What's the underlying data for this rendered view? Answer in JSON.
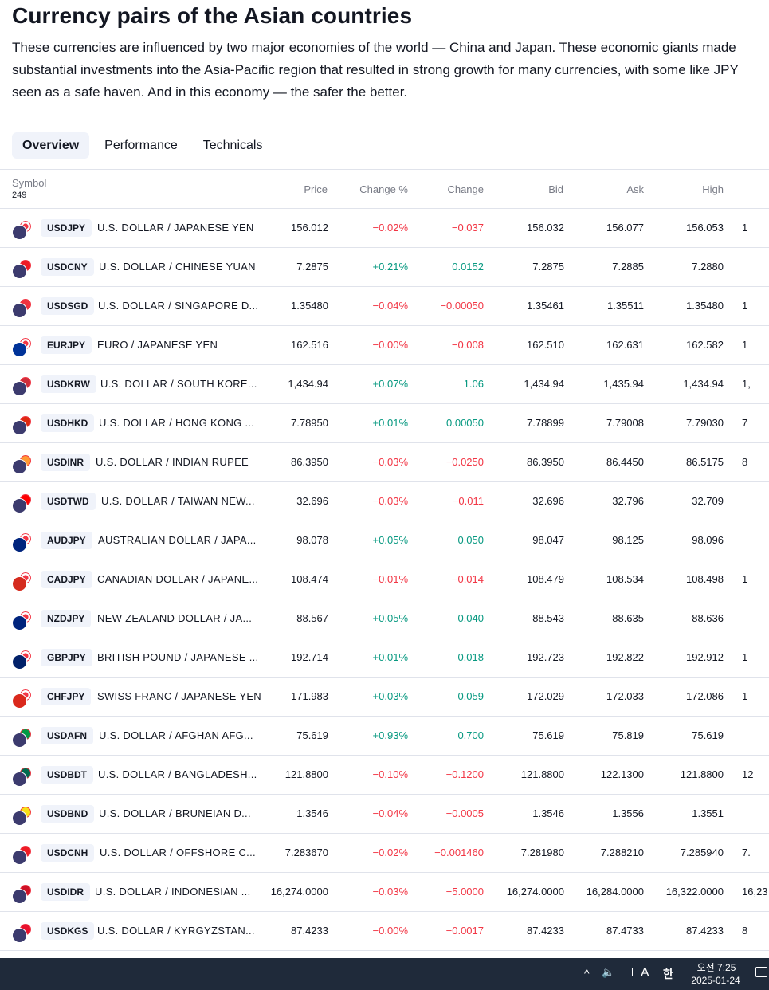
{
  "page": {
    "title": "Currency pairs of the Asian countries",
    "description": "These currencies are influenced by two major economies of the world — China and Japan. These economic giants made substantial investments into the Asia-Pacific region that resulted in strong growth for many currencies, with some like JPY seen as a safe haven. And in this economy — the safer the better."
  },
  "tabs": [
    "Overview",
    "Performance",
    "Technicals"
  ],
  "table": {
    "symbol_header": "Symbol",
    "symbol_count": "249",
    "columns": [
      "Price",
      "Change %",
      "Change",
      "Bid",
      "Ask",
      "High"
    ],
    "rows": [
      {
        "ticker": "USDJPY",
        "name": "U.S. DOLLAR / JAPANESE YEN",
        "price": "156.012",
        "chgp": "−0.02%",
        "chg": "−0.037",
        "bid": "156.032",
        "ask": "156.077",
        "high": "156.053",
        "extra": "1",
        "dir": "neg",
        "flags": [
          "#3c3b6e",
          "#ffffff"
        ]
      },
      {
        "ticker": "USDCNY",
        "name": "U.S. DOLLAR / CHINESE YUAN",
        "price": "7.2875",
        "chgp": "+0.21%",
        "chg": "0.0152",
        "bid": "7.2875",
        "ask": "7.2885",
        "high": "7.2880",
        "extra": "",
        "dir": "pos",
        "flags": [
          "#3c3b6e",
          "#ee1c25"
        ]
      },
      {
        "ticker": "USDSGD",
        "name": "U.S. DOLLAR / SINGAPORE D...",
        "price": "1.35480",
        "chgp": "−0.04%",
        "chg": "−0.00050",
        "bid": "1.35461",
        "ask": "1.35511",
        "high": "1.35480",
        "extra": "1",
        "dir": "neg",
        "flags": [
          "#3c3b6e",
          "#ef3340"
        ]
      },
      {
        "ticker": "EURJPY",
        "name": "EURO / JAPANESE YEN",
        "price": "162.516",
        "chgp": "−0.00%",
        "chg": "−0.008",
        "bid": "162.510",
        "ask": "162.631",
        "high": "162.582",
        "extra": "1",
        "dir": "neg",
        "flags": [
          "#003399",
          "#ffffff"
        ]
      },
      {
        "ticker": "USDKRW",
        "name": "U.S. DOLLAR / SOUTH KORE...",
        "price": "1,434.94",
        "chgp": "+0.07%",
        "chg": "1.06",
        "bid": "1,434.94",
        "ask": "1,435.94",
        "high": "1,434.94",
        "extra": "1,",
        "dir": "pos",
        "flags": [
          "#3c3b6e",
          "#cd2e3a"
        ]
      },
      {
        "ticker": "USDHKD",
        "name": "U.S. DOLLAR / HONG KONG ...",
        "price": "7.78950",
        "chgp": "+0.01%",
        "chg": "0.00050",
        "bid": "7.78899",
        "ask": "7.79008",
        "high": "7.79030",
        "extra": "7",
        "dir": "pos",
        "flags": [
          "#3c3b6e",
          "#de2910"
        ]
      },
      {
        "ticker": "USDINR",
        "name": "U.S. DOLLAR / INDIAN RUPEE",
        "price": "86.3950",
        "chgp": "−0.03%",
        "chg": "−0.0250",
        "bid": "86.3950",
        "ask": "86.4450",
        "high": "86.5175",
        "extra": "8",
        "dir": "neg",
        "flags": [
          "#3c3b6e",
          "#ff9933"
        ]
      },
      {
        "ticker": "USDTWD",
        "name": "U.S. DOLLAR / TAIWAN NEW...",
        "price": "32.696",
        "chgp": "−0.03%",
        "chg": "−0.011",
        "bid": "32.696",
        "ask": "32.796",
        "high": "32.709",
        "extra": "",
        "dir": "neg",
        "flags": [
          "#3c3b6e",
          "#fe0000"
        ]
      },
      {
        "ticker": "AUDJPY",
        "name": "AUSTRALIAN DOLLAR / JAPA...",
        "price": "98.078",
        "chgp": "+0.05%",
        "chg": "0.050",
        "bid": "98.047",
        "ask": "98.125",
        "high": "98.096",
        "extra": "",
        "dir": "pos",
        "flags": [
          "#00247d",
          "#ffffff"
        ]
      },
      {
        "ticker": "CADJPY",
        "name": "CANADIAN DOLLAR / JAPANE...",
        "price": "108.474",
        "chgp": "−0.01%",
        "chg": "−0.014",
        "bid": "108.479",
        "ask": "108.534",
        "high": "108.498",
        "extra": "1",
        "dir": "neg",
        "flags": [
          "#d52b1e",
          "#ffffff"
        ]
      },
      {
        "ticker": "NZDJPY",
        "name": "NEW ZEALAND DOLLAR / JA...",
        "price": "88.567",
        "chgp": "+0.05%",
        "chg": "0.040",
        "bid": "88.543",
        "ask": "88.635",
        "high": "88.636",
        "extra": "",
        "dir": "pos",
        "flags": [
          "#00247d",
          "#ffffff"
        ]
      },
      {
        "ticker": "GBPJPY",
        "name": "BRITISH POUND / JAPANESE ...",
        "price": "192.714",
        "chgp": "+0.01%",
        "chg": "0.018",
        "bid": "192.723",
        "ask": "192.822",
        "high": "192.912",
        "extra": "1",
        "dir": "pos",
        "flags": [
          "#012169",
          "#ffffff"
        ]
      },
      {
        "ticker": "CHFJPY",
        "name": "SWISS FRANC / JAPANESE YEN",
        "price": "171.983",
        "chgp": "+0.03%",
        "chg": "0.059",
        "bid": "172.029",
        "ask": "172.033",
        "high": "172.086",
        "extra": "1",
        "dir": "pos",
        "flags": [
          "#da291c",
          "#ffffff"
        ]
      },
      {
        "ticker": "USDAFN",
        "name": "U.S. DOLLAR / AFGHAN AFG...",
        "price": "75.619",
        "chgp": "+0.93%",
        "chg": "0.700",
        "bid": "75.619",
        "ask": "75.819",
        "high": "75.619",
        "extra": "",
        "dir": "pos",
        "flags": [
          "#3c3b6e",
          "#009a44"
        ]
      },
      {
        "ticker": "USDBDT",
        "name": "U.S. DOLLAR / BANGLADESH...",
        "price": "121.8800",
        "chgp": "−0.10%",
        "chg": "−0.1200",
        "bid": "121.8800",
        "ask": "122.1300",
        "high": "121.8800",
        "extra": "12",
        "dir": "neg",
        "flags": [
          "#3c3b6e",
          "#006a4e"
        ]
      },
      {
        "ticker": "USDBND",
        "name": "U.S. DOLLAR / BRUNEIAN D...",
        "price": "1.3546",
        "chgp": "−0.04%",
        "chg": "−0.0005",
        "bid": "1.3546",
        "ask": "1.3556",
        "high": "1.3551",
        "extra": "",
        "dir": "neg",
        "flags": [
          "#3c3b6e",
          "#f7e017"
        ]
      },
      {
        "ticker": "USDCNH",
        "name": "U.S. DOLLAR / OFFSHORE C...",
        "price": "7.283670",
        "chgp": "−0.02%",
        "chg": "−0.001460",
        "bid": "7.281980",
        "ask": "7.288210",
        "high": "7.285940",
        "extra": "7.",
        "dir": "neg",
        "flags": [
          "#3c3b6e",
          "#ee1c25"
        ]
      },
      {
        "ticker": "USDIDR",
        "name": "U.S. DOLLAR / INDONESIAN ...",
        "price": "16,274.0000",
        "chgp": "−0.03%",
        "chg": "−5.0000",
        "bid": "16,274.0000",
        "ask": "16,284.0000",
        "high": "16,322.0000",
        "extra": "16,23",
        "dir": "neg",
        "flags": [
          "#3c3b6e",
          "#ce1126"
        ]
      },
      {
        "ticker": "USDKGS",
        "name": "U.S. DOLLAR / KYRGYZSTAN...",
        "price": "87.4233",
        "chgp": "−0.00%",
        "chg": "−0.0017",
        "bid": "87.4233",
        "ask": "87.4733",
        "high": "87.4233",
        "extra": "8",
        "dir": "neg",
        "flags": [
          "#3c3b6e",
          "#e8112d"
        ]
      }
    ]
  },
  "taskbar": {
    "chevron_icon": "^",
    "volume_icon": "🔈",
    "ime_letter": "A",
    "ime_korean": "한",
    "time": "오전 7:25",
    "date": "2025-01-24"
  },
  "colors": {
    "positive": "#089981",
    "negative": "#f23645",
    "tab_active_bg": "#f0f3fa",
    "taskbar_bg": "#1f2a3a"
  }
}
